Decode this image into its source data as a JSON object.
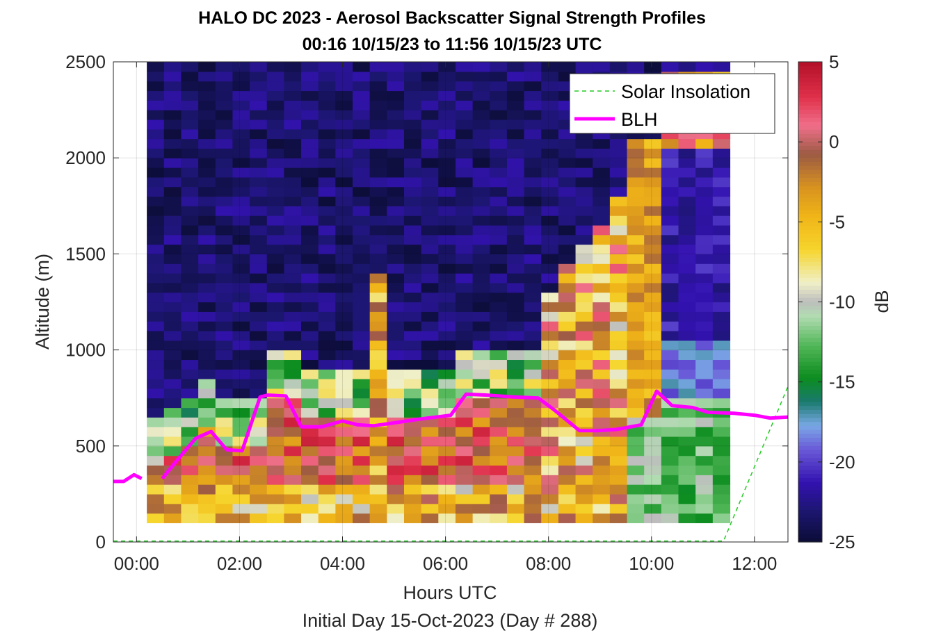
{
  "chart_data": {
    "type": "heatmap",
    "title": "HALO DC 2023 - Aerosol Backscatter Signal Strength Profiles",
    "subtitle": "00:16 10/15/23 to 11:56 10/15/23  UTC",
    "xlabel": "Hours UTC",
    "xlabel2": "Initial Day 15-Oct-2023 (Day # 288)",
    "ylabel": "Altitude (m)",
    "colorbar_label": "dB",
    "xlim": [
      -0.45,
      12.65
    ],
    "ylim": [
      0,
      2500
    ],
    "clim": [
      -25,
      5
    ],
    "x_ticks": [
      0,
      2,
      4,
      6,
      8,
      10,
      12
    ],
    "x_tick_labels": [
      "00:00",
      "02:00",
      "04:00",
      "06:00",
      "08:00",
      "10:00",
      "12:00"
    ],
    "y_ticks": [
      0,
      500,
      1000,
      1500,
      2000,
      2500
    ],
    "y_tick_labels": [
      "0",
      "500",
      "1000",
      "1500",
      "2000",
      "2500"
    ],
    "colorbar_ticks": [
      5,
      0,
      -5,
      -10,
      -15,
      -20,
      -25
    ],
    "colorbar_tick_labels": [
      "5",
      "0",
      "-5",
      "-10",
      "-15",
      "-20",
      "-25"
    ],
    "grid": true,
    "legend_position": "top-right",
    "legend": [
      {
        "label": "Solar Insolation",
        "color": "#22cc22",
        "style": "dashed"
      },
      {
        "label": "BLH",
        "color": "#ff00ff",
        "style": "solid"
      }
    ],
    "heatmap": {
      "x_start": 0.2,
      "x_step": 0.333,
      "y_start": 100,
      "y_step": 50,
      "columns": 34,
      "rows": 48,
      "value_units": "dB"
    },
    "series": [
      {
        "name": "BLH",
        "color": "#ff00ff",
        "x": [
          -0.45,
          -0.15,
          -0.2,
          0.1,
          0.2
        ],
        "segments": [
          {
            "x": [
              -0.45,
              -0.25,
              -0.05,
              0.1
            ],
            "y": [
              315,
              315,
              350,
              330
            ]
          },
          {
            "x": [
              0.5,
              0.8,
              1.15,
              1.45,
              1.75,
              2.05,
              2.4,
              2.55,
              2.9,
              3.2,
              3.6,
              4.0,
              4.3,
              4.6,
              5.0,
              5.5,
              6.1,
              6.4,
              6.8,
              7.3,
              7.8,
              8.1,
              8.6,
              8.95,
              9.3,
              9.8,
              10.1,
              10.4,
              10.8,
              11.1,
              11.6,
              12.0,
              12.3,
              12.65
            ],
            "y": [
              330,
              430,
              540,
              575,
              480,
              475,
              755,
              765,
              760,
              600,
              600,
              630,
              610,
              605,
              620,
              640,
              660,
              770,
              765,
              755,
              750,
              690,
              580,
              580,
              585,
              610,
              785,
              710,
              700,
              675,
              670,
              660,
              645,
              650
            ]
          }
        ]
      },
      {
        "name": "Solar Insolation",
        "color": "#22cc22",
        "x": [
          -0.45,
          11.4,
          12.65
        ],
        "y": [
          5,
          5,
          810
        ]
      }
    ]
  }
}
